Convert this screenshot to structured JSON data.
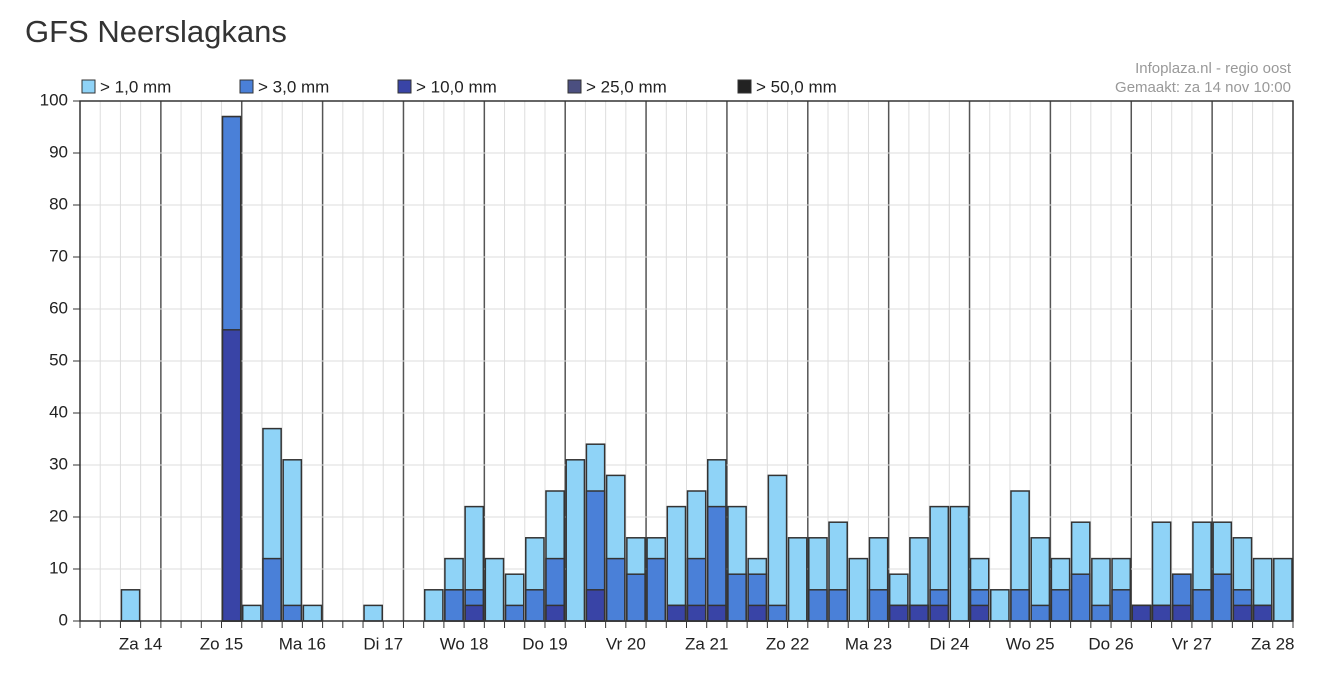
{
  "chart_data": {
    "type": "overlap_bar",
    "title": "GFS Neerslagkans",
    "source": "Infoplaza.nl - regio oost",
    "created": "Gemaakt: za 14 nov 10:00",
    "legend": "top",
    "grid": true,
    "categories": [
      null,
      null,
      null,
      "Za 14",
      null,
      null,
      null,
      "Zo 15",
      null,
      null,
      null,
      "Ma 16",
      null,
      null,
      null,
      "Di 17",
      null,
      null,
      null,
      "Wo 18",
      null,
      null,
      null,
      "Do 19",
      null,
      null,
      null,
      "Vr 20",
      null,
      null,
      null,
      "Za 21",
      null,
      null,
      null,
      "Zo 22",
      null,
      null,
      null,
      "Ma 23",
      null,
      null,
      null,
      "Di 24",
      null,
      null,
      null,
      "Wo 25",
      null,
      null,
      null,
      "Do 26",
      null,
      null,
      null,
      "Vr 27",
      null,
      null,
      null,
      "Za 28"
    ],
    "ylim": [
      0,
      100
    ],
    "yticks": [
      0,
      10,
      20,
      30,
      40,
      50,
      60,
      70,
      80,
      90,
      100
    ],
    "series": [
      {
        "name": "> 1,0 mm",
        "color": "#8fd3f7",
        "values": [
          0,
          0,
          6,
          0,
          0,
          0,
          0,
          97,
          3,
          37,
          31,
          3,
          0,
          0,
          3,
          0,
          0,
          6,
          12,
          22,
          12,
          9,
          16,
          25,
          31,
          34,
          28,
          16,
          16,
          22,
          25,
          31,
          22,
          12,
          28,
          16,
          16,
          19,
          12,
          16,
          9,
          16,
          22,
          22,
          12,
          6,
          25,
          16,
          12,
          19,
          12,
          12,
          3,
          19,
          9,
          19,
          19,
          16,
          12,
          12
        ]
      },
      {
        "name": "> 3,0 mm",
        "color": "#4a80d8",
        "values": [
          0,
          0,
          0,
          0,
          0,
          0,
          0,
          97,
          0,
          12,
          3,
          0,
          0,
          0,
          0,
          0,
          0,
          0,
          6,
          6,
          0,
          3,
          6,
          12,
          0,
          25,
          12,
          9,
          12,
          3,
          12,
          22,
          9,
          9,
          3,
          0,
          6,
          6,
          0,
          6,
          3,
          3,
          6,
          0,
          6,
          0,
          6,
          3,
          6,
          9,
          3,
          6,
          3,
          3,
          9,
          6,
          9,
          6,
          3,
          0
        ]
      },
      {
        "name": "> 10,0 mm",
        "color": "#3944a6",
        "values": [
          0,
          0,
          0,
          0,
          0,
          0,
          0,
          56,
          0,
          0,
          0,
          0,
          0,
          0,
          0,
          0,
          0,
          0,
          0,
          3,
          0,
          0,
          0,
          3,
          0,
          6,
          0,
          0,
          0,
          3,
          3,
          3,
          0,
          3,
          0,
          0,
          0,
          0,
          0,
          0,
          3,
          3,
          3,
          0,
          3,
          0,
          0,
          0,
          0,
          0,
          0,
          0,
          3,
          3,
          3,
          0,
          0,
          3,
          3,
          0
        ]
      },
      {
        "name": "> 25,0 mm",
        "color": "#4b4f80",
        "values": [
          0,
          0,
          0,
          0,
          0,
          0,
          0,
          0,
          0,
          0,
          0,
          0,
          0,
          0,
          0,
          0,
          0,
          0,
          0,
          0,
          0,
          0,
          0,
          0,
          0,
          0,
          0,
          0,
          0,
          0,
          0,
          0,
          0,
          0,
          0,
          0,
          0,
          0,
          0,
          0,
          0,
          0,
          0,
          0,
          0,
          0,
          0,
          0,
          0,
          0,
          0,
          0,
          0,
          0,
          0,
          0,
          0,
          0,
          0,
          0
        ]
      },
      {
        "name": "> 50,0 mm",
        "color": "#222222",
        "values": [
          0,
          0,
          0,
          0,
          0,
          0,
          0,
          0,
          0,
          0,
          0,
          0,
          0,
          0,
          0,
          0,
          0,
          0,
          0,
          0,
          0,
          0,
          0,
          0,
          0,
          0,
          0,
          0,
          0,
          0,
          0,
          0,
          0,
          0,
          0,
          0,
          0,
          0,
          0,
          0,
          0,
          0,
          0,
          0,
          0,
          0,
          0,
          0,
          0,
          0,
          0,
          0,
          0,
          0,
          0,
          0,
          0,
          0,
          0,
          0
        ]
      }
    ]
  }
}
